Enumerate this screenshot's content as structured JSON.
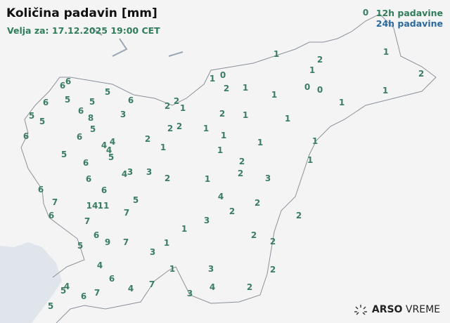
{
  "header": {
    "title": "Količina padavin [mm]",
    "valid": "Velja za: 17.12.2025 19:00 CET"
  },
  "legend": {
    "h12": "12h padavine",
    "h24": "24h padavine",
    "h12_color": "#2f7d5a",
    "h24_color": "#2a6aa0"
  },
  "logo": {
    "brand": "ARSO",
    "product": "VREME",
    "icon": "sun-rays-icon"
  },
  "stations": [
    6,
    6,
    5,
    6,
    6,
    5,
    5,
    2,
    2,
    1,
    5,
    5,
    6,
    8,
    3,
    6,
    5,
    6,
    2,
    2,
    2,
    1,
    4,
    4,
    4,
    5,
    5,
    6,
    4,
    3,
    3,
    2,
    6,
    6,
    6,
    7,
    6,
    14,
    11,
    5,
    7,
    7,
    6,
    9,
    7,
    5,
    4,
    6,
    4,
    7,
    4,
    5,
    6,
    7,
    5,
    3,
    1,
    1,
    1,
    3,
    3,
    4,
    3,
    2,
    2,
    2,
    2,
    2,
    2,
    2,
    4,
    1,
    2,
    3,
    2,
    1,
    1,
    1,
    1,
    2,
    1,
    1,
    1,
    0,
    2,
    1,
    1,
    1,
    0,
    0,
    2,
    1,
    1,
    1,
    2,
    1,
    1,
    1,
    0
  ]
}
